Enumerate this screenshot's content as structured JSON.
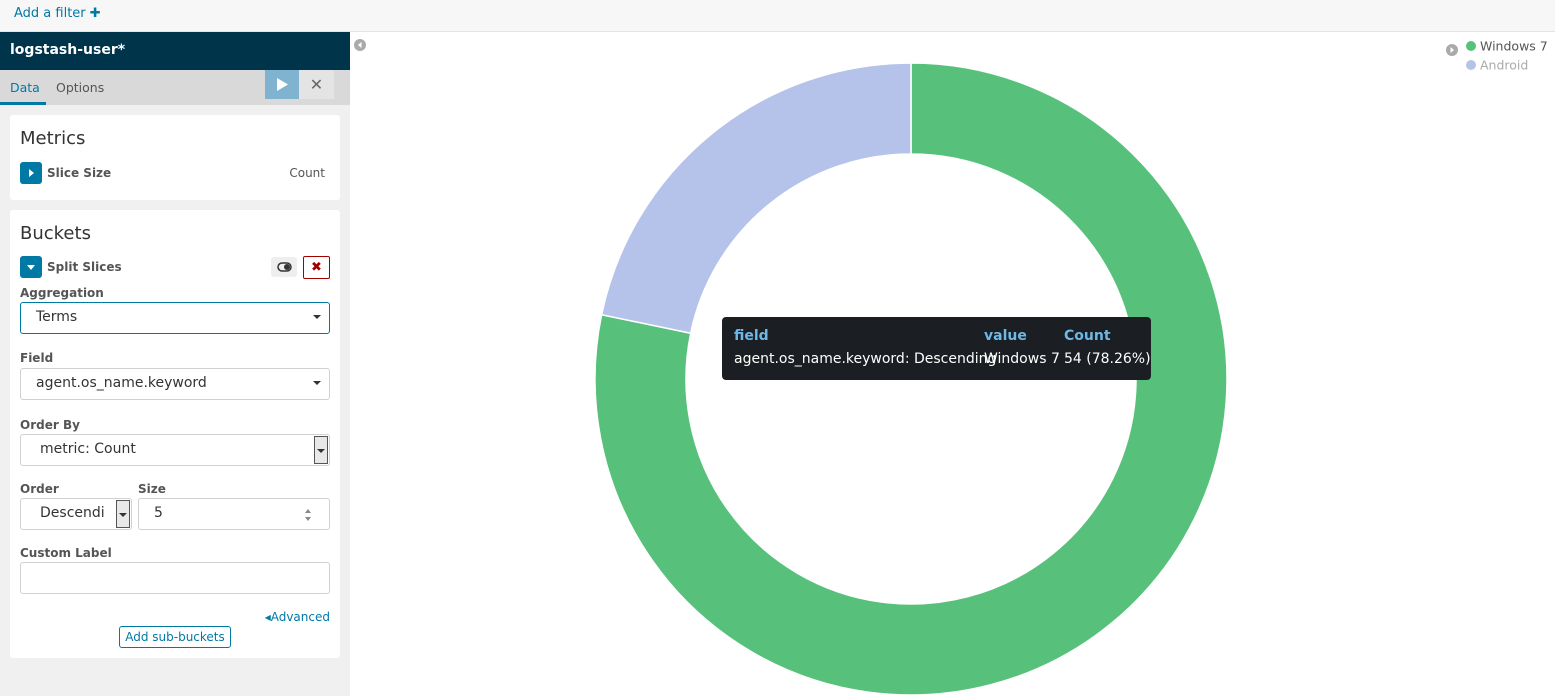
{
  "filter_bar": {
    "add_filter": "Add a filter"
  },
  "sidebar": {
    "index_pattern": "logstash-user*",
    "tabs": [
      "Data",
      "Options"
    ],
    "metrics": {
      "title": "Metrics",
      "agg_label": "Slice Size",
      "agg_value": "Count"
    },
    "buckets": {
      "title": "Buckets",
      "agg_label": "Split Slices",
      "aggregation_label": "Aggregation",
      "aggregation_value": "Terms",
      "field_label": "Field",
      "field_value": "agent.os_name.keyword",
      "order_by_label": "Order By",
      "order_by_value": "metric: Count",
      "order_label": "Order",
      "order_value": "Descendi",
      "size_label": "Size",
      "size_value": 5,
      "custom_label": "Custom Label",
      "advanced": "Advanced",
      "add_sub_buckets": "Add sub-buckets"
    }
  },
  "chart_data": {
    "type": "pie",
    "donut": true,
    "categories": [
      "Windows 7",
      "Android"
    ],
    "values": [
      54,
      15
    ],
    "colors": [
      "#57c17b",
      "#b5c3ea"
    ],
    "legend": "top-right"
  },
  "tooltip": {
    "headers": [
      "field",
      "value",
      "Count"
    ],
    "row": [
      "agent.os_name.keyword: Descending",
      "Windows 7",
      "54 (78.26%)"
    ]
  }
}
